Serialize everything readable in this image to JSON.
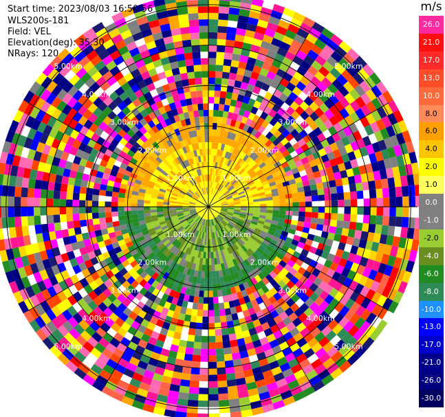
{
  "header": {
    "start_time": "Start time: 2023/08/03 16:50:56",
    "instrument": "WLS200s-181",
    "field": "Field: VEL",
    "elevation": "Elevation(deg): 35.30",
    "nrays": "NRays: 120"
  },
  "colorbar": {
    "unit": "m/s",
    "labels": [
      "26.0",
      "21.0",
      "17.0",
      "13.0",
      "10.0",
      "8.0",
      "6.0",
      "4.0",
      "2.0",
      "1.0",
      "0.0",
      "-1.0",
      "-2.0",
      "-4.0",
      "-6.0",
      "-8.0",
      "-10.0",
      "-13.0",
      "-17.0",
      "-21.0",
      "-26.0",
      "-30.0"
    ],
    "colors": [
      "#ff2aa0",
      "#ff1010",
      "#ff2a2a",
      "#ff4d2a",
      "#ff6a3c",
      "#ff8a5a",
      "#ffa000",
      "#ffc400",
      "#ffff00",
      "#ffff60",
      "#808080",
      "#808080",
      "#9acd32",
      "#6b8e23",
      "#228b22",
      "#2e8b57",
      "#1e90ff",
      "#0000ff",
      "#0000cd",
      "#00008b",
      "#000080",
      "#000060"
    ]
  },
  "chart_data": {
    "type": "ppi-radar",
    "field": "VEL",
    "units": "m/s",
    "n_rays": 120,
    "elevation_deg": 35.3,
    "range_rings_km": [
      1.0,
      2.0,
      3.0,
      4.0,
      5.0
    ],
    "ring_labels": [
      "1.00km",
      "2.00km",
      "3.00km",
      "4.00km",
      "5.00km"
    ],
    "color_scale_min": -30.0,
    "color_scale_max": 26.0
  }
}
